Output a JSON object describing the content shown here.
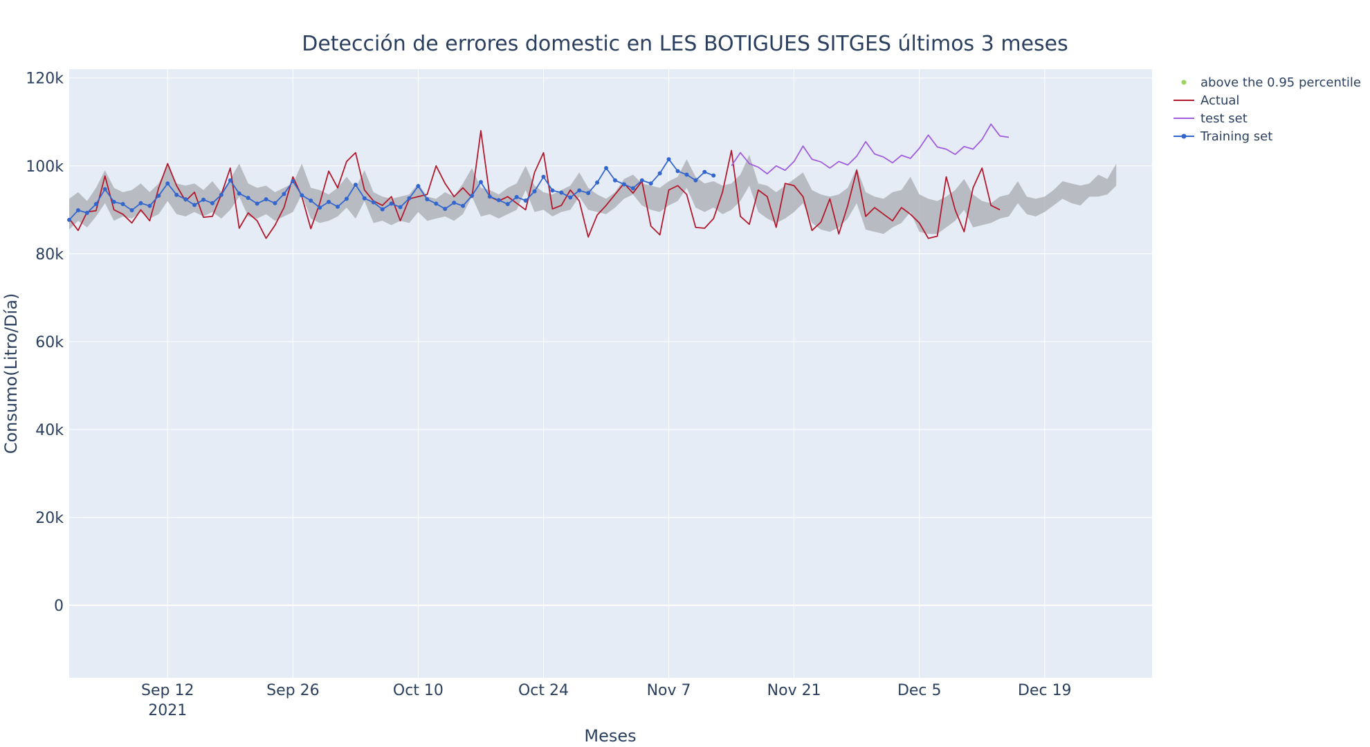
{
  "chart_data": {
    "type": "line",
    "title": "Detección de errores domestic en LES BOTIGUES SITGES últimos 3 meses",
    "xlabel": "Meses",
    "ylabel": "Consumo(Litro/Día)",
    "x_start": "2021-09-01",
    "x_range": [
      "2021-09-01",
      "2021-12-31"
    ],
    "ylim": [
      -16500,
      122000
    ],
    "grid": true,
    "legend_position": "top-right",
    "x_ticks": [
      {
        "date": "2021-09-12",
        "label": "Sep 12",
        "sublabel": "2021"
      },
      {
        "date": "2021-09-26",
        "label": "Sep 26",
        "sublabel": ""
      },
      {
        "date": "2021-10-10",
        "label": "Oct 10",
        "sublabel": ""
      },
      {
        "date": "2021-10-24",
        "label": "Oct 24",
        "sublabel": ""
      },
      {
        "date": "2021-11-07",
        "label": "Nov 7",
        "sublabel": ""
      },
      {
        "date": "2021-11-21",
        "label": "Nov 21",
        "sublabel": ""
      },
      {
        "date": "2021-12-05",
        "label": "Dec 5",
        "sublabel": ""
      },
      {
        "date": "2021-12-19",
        "label": "Dec 19",
        "sublabel": ""
      }
    ],
    "y_ticks": [
      {
        "value": 0,
        "label": "0"
      },
      {
        "value": 20000,
        "label": "20k"
      },
      {
        "value": 40000,
        "label": "40k"
      },
      {
        "value": 60000,
        "label": "60k"
      },
      {
        "value": 80000,
        "label": "80k"
      },
      {
        "value": 100000,
        "label": "100k"
      },
      {
        "value": 120000,
        "label": "120k"
      }
    ],
    "band": {
      "color": "#b0b3b9",
      "start_date": "2021-09-01",
      "upper": [
        92500,
        94000,
        92000,
        95000,
        99000,
        95000,
        94000,
        94500,
        96000,
        94000,
        96000,
        100000,
        96000,
        95500,
        96000,
        94500,
        96500,
        94000,
        97000,
        100500,
        96000,
        95000,
        95500,
        94000,
        95000,
        96000,
        100500,
        95000,
        94500,
        93500,
        95000,
        97500,
        95000,
        99000,
        94000,
        93000,
        92500,
        93000,
        93500,
        96000,
        93000,
        92500,
        94000,
        93000,
        96000,
        99500,
        95000,
        94500,
        93500,
        95000,
        96000,
        100000,
        95500,
        94000,
        93500,
        94500,
        95500,
        98500,
        95000,
        93500,
        92500,
        94000,
        97000,
        98000,
        96000,
        95500,
        95000,
        96500,
        97500,
        101500,
        97500,
        96000,
        96500,
        95500,
        96000,
        98000,
        102500,
        96000,
        95500,
        94000,
        95500,
        97000,
        98500,
        94500,
        93500,
        93000,
        93500,
        95000,
        99500,
        94000,
        93000,
        92500,
        94000,
        94500,
        97500,
        93500,
        92500,
        92000,
        93000,
        94500,
        97000,
        93500,
        92000,
        91500,
        93000,
        93500,
        96500,
        93000,
        92500,
        93000,
        94500,
        96500,
        96000,
        95500,
        96000,
        98000,
        97000,
        100500
      ],
      "lower": [
        85500,
        87500,
        86000,
        88500,
        91500,
        87500,
        88500,
        88000,
        89500,
        88000,
        89000,
        92000,
        89000,
        88500,
        89500,
        88500,
        89500,
        88000,
        90000,
        93000,
        88500,
        88000,
        89000,
        87500,
        88500,
        89500,
        93500,
        88000,
        87000,
        87500,
        88500,
        90500,
        88000,
        92000,
        87000,
        87500,
        86500,
        87500,
        87000,
        89500,
        87500,
        88000,
        88500,
        87500,
        89000,
        93000,
        88500,
        89000,
        88000,
        89000,
        90000,
        94500,
        89500,
        90000,
        88500,
        89500,
        90000,
        93000,
        90000,
        89500,
        89000,
        90500,
        92500,
        93500,
        91000,
        90000,
        89500,
        91000,
        92000,
        95000,
        90500,
        89500,
        90500,
        89000,
        90000,
        92000,
        95500,
        89500,
        88000,
        87000,
        88000,
        89500,
        91500,
        87000,
        85500,
        85000,
        86000,
        88000,
        91500,
        85500,
        85000,
        84500,
        86000,
        87000,
        89500,
        85000,
        84500,
        84500,
        86000,
        87500,
        90000,
        86000,
        86500,
        87000,
        88000,
        88500,
        91500,
        89000,
        88500,
        89500,
        91000,
        92500,
        91500,
        91000,
        93000,
        93000,
        93500,
        95500
      ]
    },
    "series": [
      {
        "name": "above the 0.95 percentile",
        "color": "#9bd35e",
        "mode": "markers",
        "points": []
      },
      {
        "name": "Actual",
        "color": "#b2182b",
        "mode": "lines",
        "start_date": "2021-09-01",
        "values": [
          88000,
          85300,
          89500,
          89800,
          97700,
          90000,
          89000,
          87000,
          90000,
          87500,
          95000,
          100500,
          95500,
          92000,
          94000,
          88300,
          88500,
          93500,
          99500,
          85800,
          89300,
          87500,
          83500,
          86500,
          90500,
          97500,
          93000,
          85700,
          91500,
          98800,
          95000,
          101000,
          103000,
          94500,
          92000,
          91000,
          93000,
          87500,
          92500,
          93000,
          93500,
          100000,
          96000,
          93000,
          95000,
          92800,
          108000,
          93000,
          92000,
          93000,
          91500,
          90000,
          98500,
          103000,
          90200,
          91000,
          94500,
          92000,
          83800,
          88800,
          91000,
          93500,
          96000,
          93800,
          96500,
          86300,
          84300,
          94500,
          95500,
          93500,
          86000,
          85800,
          88000,
          94000,
          103500,
          88500,
          86700,
          94500,
          93000,
          86000,
          96000,
          95500,
          93000,
          85300,
          87200,
          92500,
          84500,
          91000,
          99000,
          88500,
          90500,
          89000,
          87500,
          90500,
          89000,
          87000,
          83500,
          84000,
          97500,
          90000,
          85000,
          95000,
          99500,
          91000,
          90000
        ]
      },
      {
        "name": "test set",
        "color": "#a05cde",
        "mode": "lines",
        "start_date": "2021-11-14",
        "values": [
          100000,
          103000,
          100500,
          99700,
          98200,
          100000,
          99000,
          101000,
          104500,
          101500,
          100900,
          99500,
          101000,
          100200,
          102200,
          105500,
          102700,
          102000,
          100700,
          102400,
          101700,
          104000,
          107000,
          104300,
          103800,
          102600,
          104400,
          103800,
          106000,
          109500,
          106800,
          106500
        ]
      },
      {
        "name": "Training set",
        "color": "#3366cc",
        "mode": "lines+markers",
        "start_date": "2021-09-01",
        "values": [
          87700,
          89900,
          89300,
          91300,
          94700,
          91800,
          91300,
          89900,
          91500,
          90900,
          93200,
          96000,
          93400,
          92400,
          91100,
          92300,
          91500,
          93400,
          96700,
          93700,
          92700,
          91400,
          92400,
          91500,
          93600,
          96500,
          93300,
          92100,
          90500,
          91800,
          90700,
          92500,
          95700,
          92600,
          91700,
          90100,
          91400,
          90600,
          92600,
          95400,
          92400,
          91400,
          90200,
          91600,
          90900,
          93200,
          96300,
          93000,
          92200,
          91300,
          92900,
          92100,
          94200,
          97500,
          94400,
          93900,
          92800,
          94400,
          93800,
          96200,
          99500,
          96700,
          95800,
          94900,
          96700,
          96000,
          98300,
          101500,
          98800,
          98000,
          96700,
          98600,
          97800
        ]
      }
    ]
  }
}
